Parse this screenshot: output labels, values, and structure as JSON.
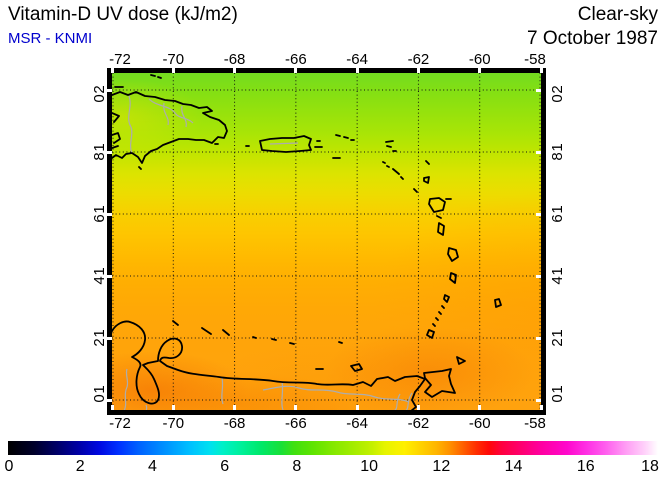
{
  "header": {
    "title": "Vitamin-D UV dose (kJ/m2)",
    "subtitle": "MSR - KNMI",
    "subtitle_color": "#0000CD",
    "condition": "Clear-sky",
    "date": "7 October 1987"
  },
  "map": {
    "lon_labels": [
      "-72",
      "-70",
      "-68",
      "-66",
      "-64",
      "-62",
      "-60",
      "-58"
    ],
    "lat_labels": [
      "20",
      "18",
      "16",
      "14",
      "12",
      "10"
    ],
    "field_stops": [
      [
        0,
        "#74DB20"
      ],
      [
        5,
        "#82DF14"
      ],
      [
        12,
        "#97E20C"
      ],
      [
        18,
        "#A9E506"
      ],
      [
        24,
        "#C2E500"
      ],
      [
        30,
        "#DCE400"
      ],
      [
        36,
        "#EDDC00"
      ],
      [
        42,
        "#F8CF00"
      ],
      [
        48,
        "#FEC500"
      ],
      [
        55,
        "#FFB900"
      ],
      [
        62,
        "#FFAE02"
      ],
      [
        70,
        "#FFA806"
      ],
      [
        80,
        "#FFA40A"
      ],
      [
        100,
        "#FFA20E"
      ]
    ],
    "hotspots": [
      {
        "size": "140px 55px",
        "pos": "9% 94%",
        "color": "rgba(240,100,0,0.50)"
      },
      {
        "size": "160px 45px",
        "pos": "30% 98%",
        "color": "rgba(245,125,0,0.40)"
      },
      {
        "size": "150px 65px",
        "pos": "74% 89%",
        "color": "rgba(242,110,0,0.40)"
      },
      {
        "size": "260px 160px",
        "pos": "103% 68%",
        "color": "rgba(255,150,0,0.30)"
      },
      {
        "size": "120px 55px",
        "pos": "2% 13%",
        "color": "rgba(238,228,0,0.45)"
      },
      {
        "size": "200px 110px",
        "pos": "50% 102%",
        "color": "rgba(250,140,0,0.28)"
      }
    ],
    "coast_color": "#000000",
    "river_color": "#ADADAD"
  },
  "colorbar": {
    "tick_labels": [
      "0",
      "2",
      "4",
      "6",
      "8",
      "10",
      "12",
      "14",
      "16",
      "18"
    ],
    "stops": [
      [
        0,
        "#000000"
      ],
      [
        4,
        "#00002A"
      ],
      [
        8,
        "#000070"
      ],
      [
        11,
        "#0000A8"
      ],
      [
        14,
        "#0008E0"
      ],
      [
        17,
        "#0030FF"
      ],
      [
        20,
        "#0060FF"
      ],
      [
        24,
        "#0090FF"
      ],
      [
        28,
        "#00C0FF"
      ],
      [
        31,
        "#00E0F0"
      ],
      [
        33,
        "#00F0C8"
      ],
      [
        36,
        "#00F098"
      ],
      [
        39,
        "#00E868"
      ],
      [
        42,
        "#18E038"
      ],
      [
        44,
        "#40E010"
      ],
      [
        47,
        "#60E400"
      ],
      [
        50,
        "#84E800"
      ],
      [
        53,
        "#A2EC00"
      ],
      [
        56,
        "#C4F000"
      ],
      [
        58,
        "#E6F400"
      ],
      [
        61,
        "#FFF000"
      ],
      [
        63,
        "#FFD800"
      ],
      [
        66,
        "#FFB400"
      ],
      [
        68,
        "#FF9000"
      ],
      [
        70,
        "#FF6000"
      ],
      [
        72,
        "#FF3000"
      ],
      [
        74,
        "#FF0808"
      ],
      [
        76,
        "#FF0040"
      ],
      [
        79,
        "#FF0070"
      ],
      [
        82,
        "#FF00A0"
      ],
      [
        86,
        "#FF08CC"
      ],
      [
        89,
        "#FF30E4"
      ],
      [
        92,
        "#FF60EE"
      ],
      [
        95,
        "#FF9CF4"
      ],
      [
        98,
        "#FFD2FA"
      ],
      [
        100,
        "#FFFFFF"
      ]
    ]
  },
  "chart_data": {
    "type": "heatmap",
    "title": "Vitamin-D UV dose (kJ/m2)",
    "source_label": "MSR - KNMI",
    "condition": "Clear-sky",
    "date": "7 October 1987",
    "region": "Caribbean: Hispaniola, Puerto Rico, Lesser Antilles arc, Trinidad, Venezuela/Colombia coast",
    "lon_ticks": [
      -72,
      -70,
      -68,
      -66,
      -64,
      -62,
      -60,
      -58
    ],
    "lat_ticks": [
      20,
      18,
      16,
      14,
      12,
      10
    ],
    "lon_range": [
      -72,
      -58
    ],
    "lat_range": [
      9.5,
      20.5
    ],
    "grid": true,
    "colorbar": {
      "range": [
        0,
        18
      ],
      "ticks": [
        0,
        2,
        4,
        6,
        8,
        10,
        12,
        14,
        16,
        18
      ],
      "units": "kJ/m2",
      "palette": "black-blue-cyan-green-yellow-orange-red-magenta-white"
    },
    "field_profile_by_latitude": [
      {
        "lat": 20,
        "value_kJ_m2": 9.0
      },
      {
        "lat": 18,
        "value_kJ_m2": 9.6
      },
      {
        "lat": 16,
        "value_kJ_m2": 10.3
      },
      {
        "lat": 14,
        "value_kJ_m2": 10.9
      },
      {
        "lat": 12,
        "value_kJ_m2": 11.6
      },
      {
        "lat": 10,
        "value_kJ_m2": 12.0
      }
    ],
    "notes": "Smooth north-south gradient from green (~9 kJ/m2) at 20N to orange (~12 kJ/m2) near the Venezuelan coast; locally darker orange patches along the south coast and near Trinidad."
  }
}
